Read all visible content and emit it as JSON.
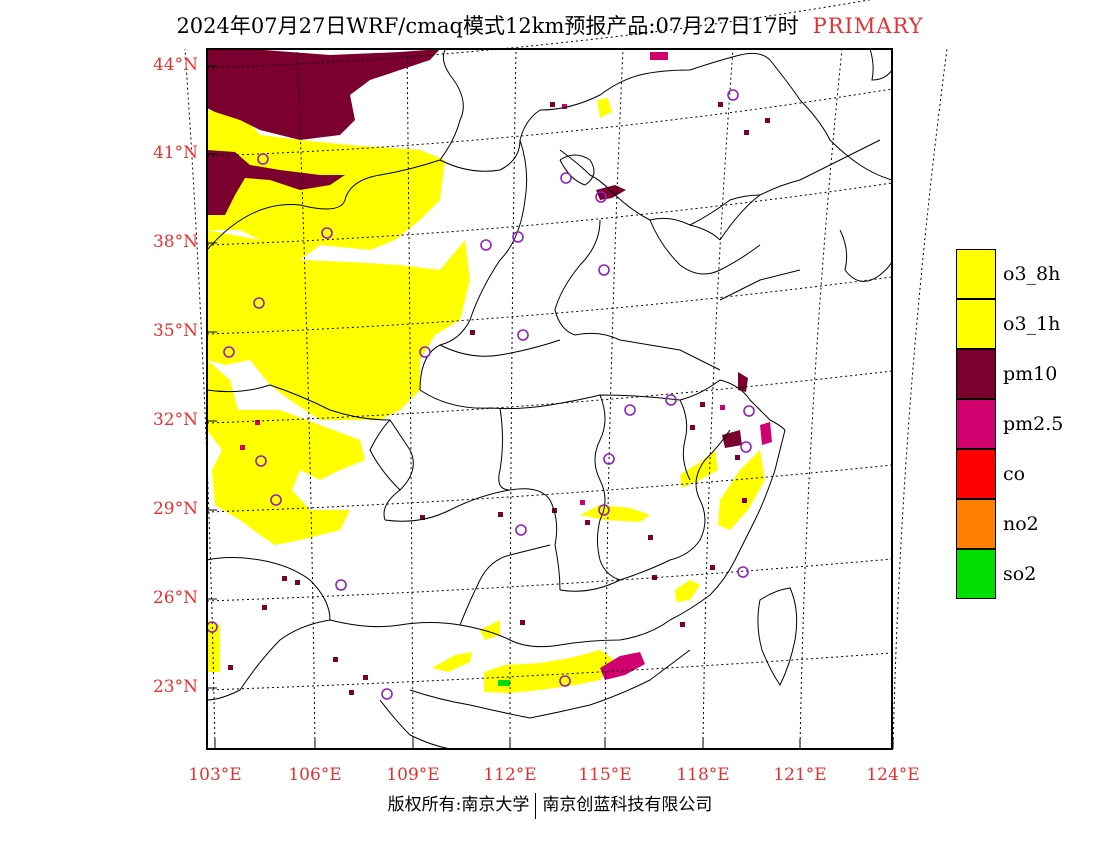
{
  "title": {
    "main": "2024年07月27日WRF/cmaq模式12km预报产品:07月27日17时",
    "tag": "PRIMARY"
  },
  "colors": {
    "o3_8h": "#ffff00",
    "o3_1h": "#ffff00",
    "pm10": "#7b0030",
    "pm25": "#d0006f",
    "co": "#ff0000",
    "no2": "#ff8000",
    "so2": "#00dd00",
    "axis_label": "#e83030",
    "station_marker": "#9020c0"
  },
  "legend": [
    {
      "label": "o3_8h",
      "color": "#ffff00"
    },
    {
      "label": "o3_1h",
      "color": "#ffff00"
    },
    {
      "label": "pm10",
      "color": "#7b0030"
    },
    {
      "label": "pm2.5",
      "color": "#d0006f"
    },
    {
      "label": "co",
      "color": "#ff0000"
    },
    {
      "label": "no2",
      "color": "#ff8000"
    },
    {
      "label": "so2",
      "color": "#00dd00"
    }
  ],
  "lat_labels": [
    "44°N",
    "41°N",
    "38°N",
    "35°N",
    "32°N",
    "29°N",
    "26°N",
    "23°N"
  ],
  "lon_labels": [
    "103°E",
    "106°E",
    "109°E",
    "112°E",
    "115°E",
    "118°E",
    "121°E",
    "124°E"
  ],
  "footer": {
    "left": "版权所有:南京大学",
    "right": "南京创蓝科技有限公司"
  }
}
